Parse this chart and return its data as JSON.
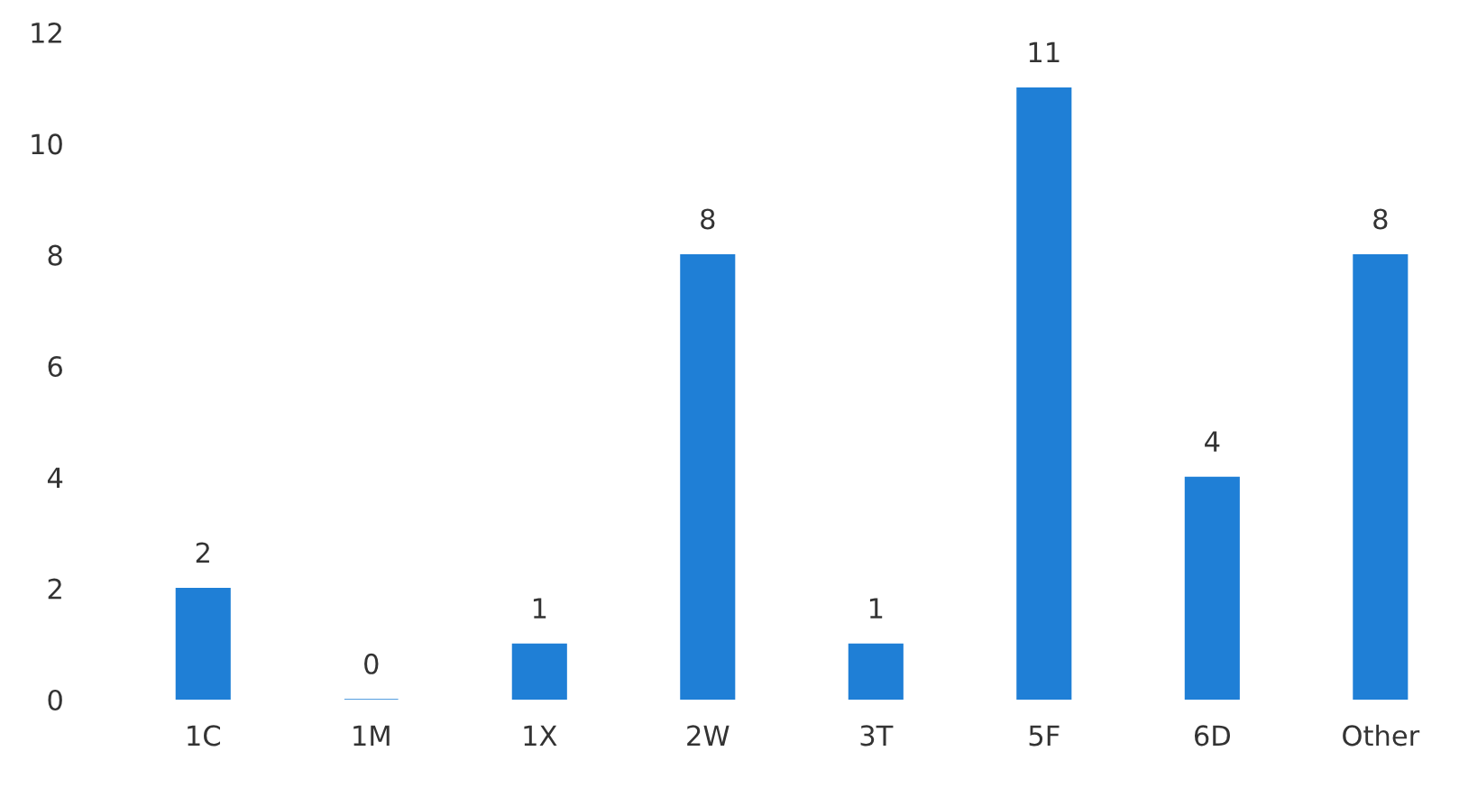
{
  "chart_data": {
    "type": "bar",
    "categories": [
      "1C",
      "1M",
      "1X",
      "2W",
      "3T",
      "5F",
      "6D",
      "Other"
    ],
    "values": [
      2,
      0,
      1,
      8,
      1,
      11,
      4,
      8
    ],
    "color": "#1f7fd6",
    "ylim": [
      0,
      12
    ],
    "yticks": [
      0,
      2,
      4,
      6,
      8,
      10,
      12
    ],
    "data_labels": true,
    "grid": false,
    "legend": false
  }
}
